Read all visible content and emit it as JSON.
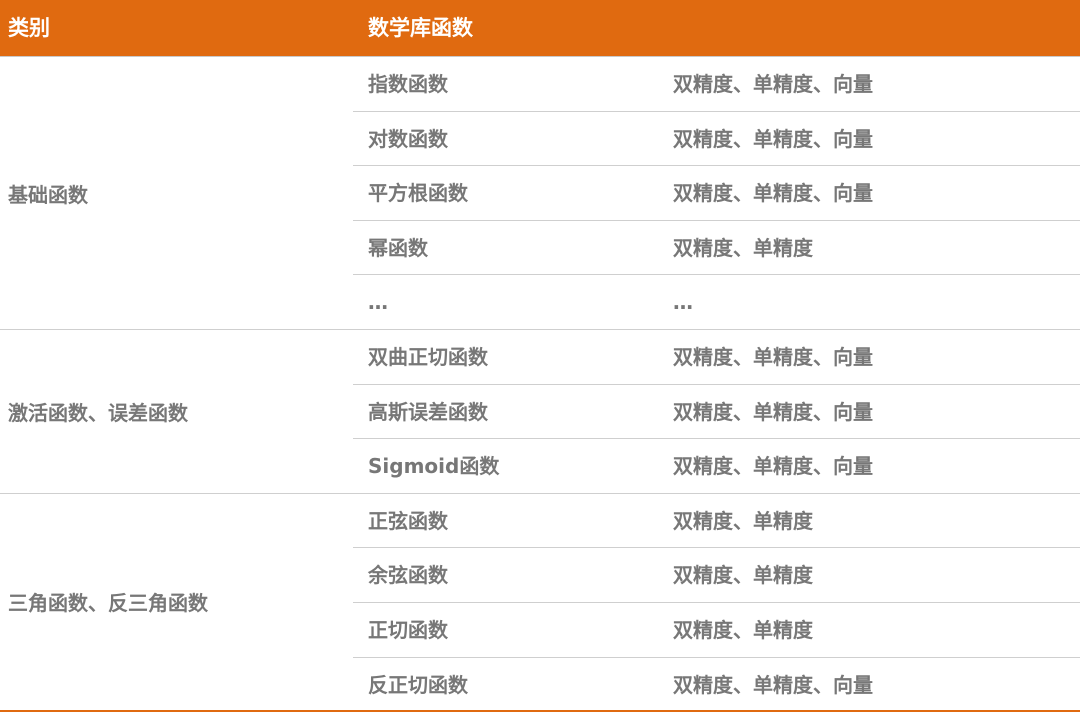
{
  "header": {
    "col1": "类别",
    "col2": "数学库函数",
    "color": "#E06A10"
  },
  "groups": [
    {
      "category": "基础函数",
      "rows": [
        {
          "func": "指数函数",
          "precision": "双精度、单精度、向量"
        },
        {
          "func": "对数函数",
          "precision": "双精度、单精度、向量"
        },
        {
          "func": "平方根函数",
          "precision": "双精度、单精度、向量"
        },
        {
          "func": "幂函数",
          "precision": "双精度、单精度"
        },
        {
          "func": "…",
          "precision": "…"
        }
      ]
    },
    {
      "category": "激活函数、误差函数",
      "rows": [
        {
          "func": "双曲正切函数",
          "precision": "双精度、单精度、向量"
        },
        {
          "func": "高斯误差函数",
          "precision": "双精度、单精度、向量"
        },
        {
          "func": "Sigmoid函数",
          "precision": "双精度、单精度、向量"
        }
      ]
    },
    {
      "category": "三角函数、反三角函数",
      "rows": [
        {
          "func": "正弦函数",
          "precision": "双精度、单精度"
        },
        {
          "func": "余弦函数",
          "precision": "双精度、单精度"
        },
        {
          "func": "正切函数",
          "precision": "双精度、单精度"
        },
        {
          "func": "反正切函数",
          "precision": "双精度、单精度、向量"
        }
      ]
    }
  ]
}
